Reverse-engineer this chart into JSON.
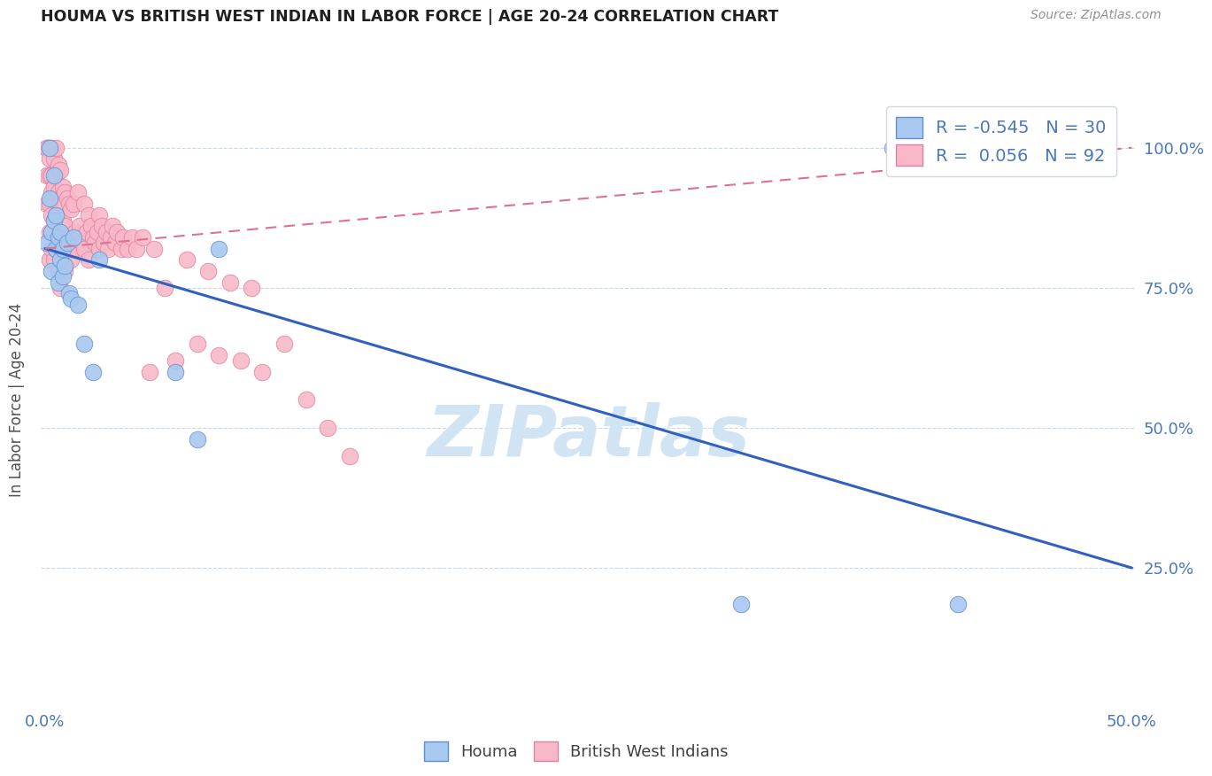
{
  "title": "HOUMA VS BRITISH WEST INDIAN IN LABOR FORCE | AGE 20-24 CORRELATION CHART",
  "source": "Source: ZipAtlas.com",
  "ylabel": "In Labor Force | Age 20-24",
  "xlim": [
    -0.002,
    0.502
  ],
  "ylim": [
    0.0,
    1.1
  ],
  "xtick_positions": [
    0.0,
    0.1,
    0.2,
    0.3,
    0.4,
    0.5
  ],
  "xticklabels": [
    "0.0%",
    "",
    "",
    "",
    "",
    "50.0%"
  ],
  "ytick_positions": [
    0.25,
    0.5,
    0.75,
    1.0
  ],
  "yticklabels": [
    "25.0%",
    "50.0%",
    "75.0%",
    "100.0%"
  ],
  "watermark": "ZIPatlas",
  "legend_blue_r": "-0.545",
  "legend_blue_n": "30",
  "legend_pink_r": "0.056",
  "legend_pink_n": "92",
  "blue_fill": "#A8C8F0",
  "pink_fill": "#F8B8C8",
  "blue_edge": "#6090D0",
  "pink_edge": "#E080A0",
  "blue_line": "#3060C0",
  "pink_line": "#E07090",
  "grid_color": "#C8D8EC",
  "title_color": "#202020",
  "tick_color": "#4878C0",
  "source_color": "#909090",
  "ylabel_color": "#505050",
  "watermark_color": "#D0E4F4",
  "houma_x": [
    0.001,
    0.002,
    0.002,
    0.003,
    0.003,
    0.004,
    0.004,
    0.005,
    0.005,
    0.006,
    0.006,
    0.007,
    0.007,
    0.008,
    0.008,
    0.009,
    0.01,
    0.011,
    0.012,
    0.013,
    0.015,
    0.018,
    0.022,
    0.025,
    0.06,
    0.07,
    0.08,
    0.32,
    0.39,
    0.42
  ],
  "houma_y": [
    0.83,
    0.91,
    1.0,
    0.85,
    0.78,
    0.95,
    0.87,
    0.82,
    0.88,
    0.84,
    0.76,
    0.85,
    0.8,
    0.82,
    0.77,
    0.79,
    0.83,
    0.74,
    0.73,
    0.84,
    0.72,
    0.65,
    0.6,
    0.8,
    0.6,
    0.48,
    0.82,
    0.185,
    1.0,
    0.185
  ],
  "bwi_x": [
    0.001,
    0.001,
    0.001,
    0.001,
    0.001,
    0.002,
    0.002,
    0.002,
    0.002,
    0.002,
    0.002,
    0.003,
    0.003,
    0.003,
    0.003,
    0.003,
    0.004,
    0.004,
    0.004,
    0.004,
    0.005,
    0.005,
    0.005,
    0.005,
    0.006,
    0.006,
    0.006,
    0.006,
    0.007,
    0.007,
    0.007,
    0.007,
    0.008,
    0.008,
    0.008,
    0.009,
    0.009,
    0.009,
    0.01,
    0.01,
    0.011,
    0.011,
    0.012,
    0.012,
    0.013,
    0.013,
    0.014,
    0.015,
    0.015,
    0.016,
    0.017,
    0.018,
    0.018,
    0.019,
    0.02,
    0.02,
    0.021,
    0.022,
    0.023,
    0.024,
    0.025,
    0.025,
    0.026,
    0.027,
    0.028,
    0.029,
    0.03,
    0.031,
    0.032,
    0.033,
    0.035,
    0.036,
    0.038,
    0.04,
    0.042,
    0.045,
    0.048,
    0.05,
    0.055,
    0.06,
    0.065,
    0.07,
    0.075,
    0.08,
    0.085,
    0.09,
    0.095,
    0.1,
    0.11,
    0.12,
    0.13,
    0.14
  ],
  "bwi_y": [
    1.0,
    1.0,
    1.0,
    0.95,
    0.9,
    1.0,
    0.98,
    0.95,
    0.9,
    0.85,
    0.8,
    1.0,
    0.95,
    0.92,
    0.88,
    0.82,
    0.98,
    0.93,
    0.87,
    0.8,
    1.0,
    0.95,
    0.88,
    0.82,
    0.97,
    0.92,
    0.87,
    0.78,
    0.96,
    0.9,
    0.85,
    0.75,
    0.93,
    0.87,
    0.8,
    0.92,
    0.86,
    0.78,
    0.91,
    0.84,
    0.9,
    0.82,
    0.89,
    0.8,
    0.9,
    0.82,
    0.85,
    0.92,
    0.84,
    0.86,
    0.83,
    0.9,
    0.82,
    0.85,
    0.88,
    0.8,
    0.86,
    0.84,
    0.83,
    0.85,
    0.88,
    0.82,
    0.86,
    0.83,
    0.85,
    0.82,
    0.84,
    0.86,
    0.83,
    0.85,
    0.82,
    0.84,
    0.82,
    0.84,
    0.82,
    0.84,
    0.6,
    0.82,
    0.75,
    0.62,
    0.8,
    0.65,
    0.78,
    0.63,
    0.76,
    0.62,
    0.75,
    0.6,
    0.65,
    0.55,
    0.5,
    0.45
  ],
  "blue_line_x": [
    0.0,
    0.5
  ],
  "blue_line_y": [
    0.82,
    0.25
  ],
  "pink_line_x": [
    0.0,
    0.5
  ],
  "pink_line_y": [
    0.82,
    1.0
  ]
}
